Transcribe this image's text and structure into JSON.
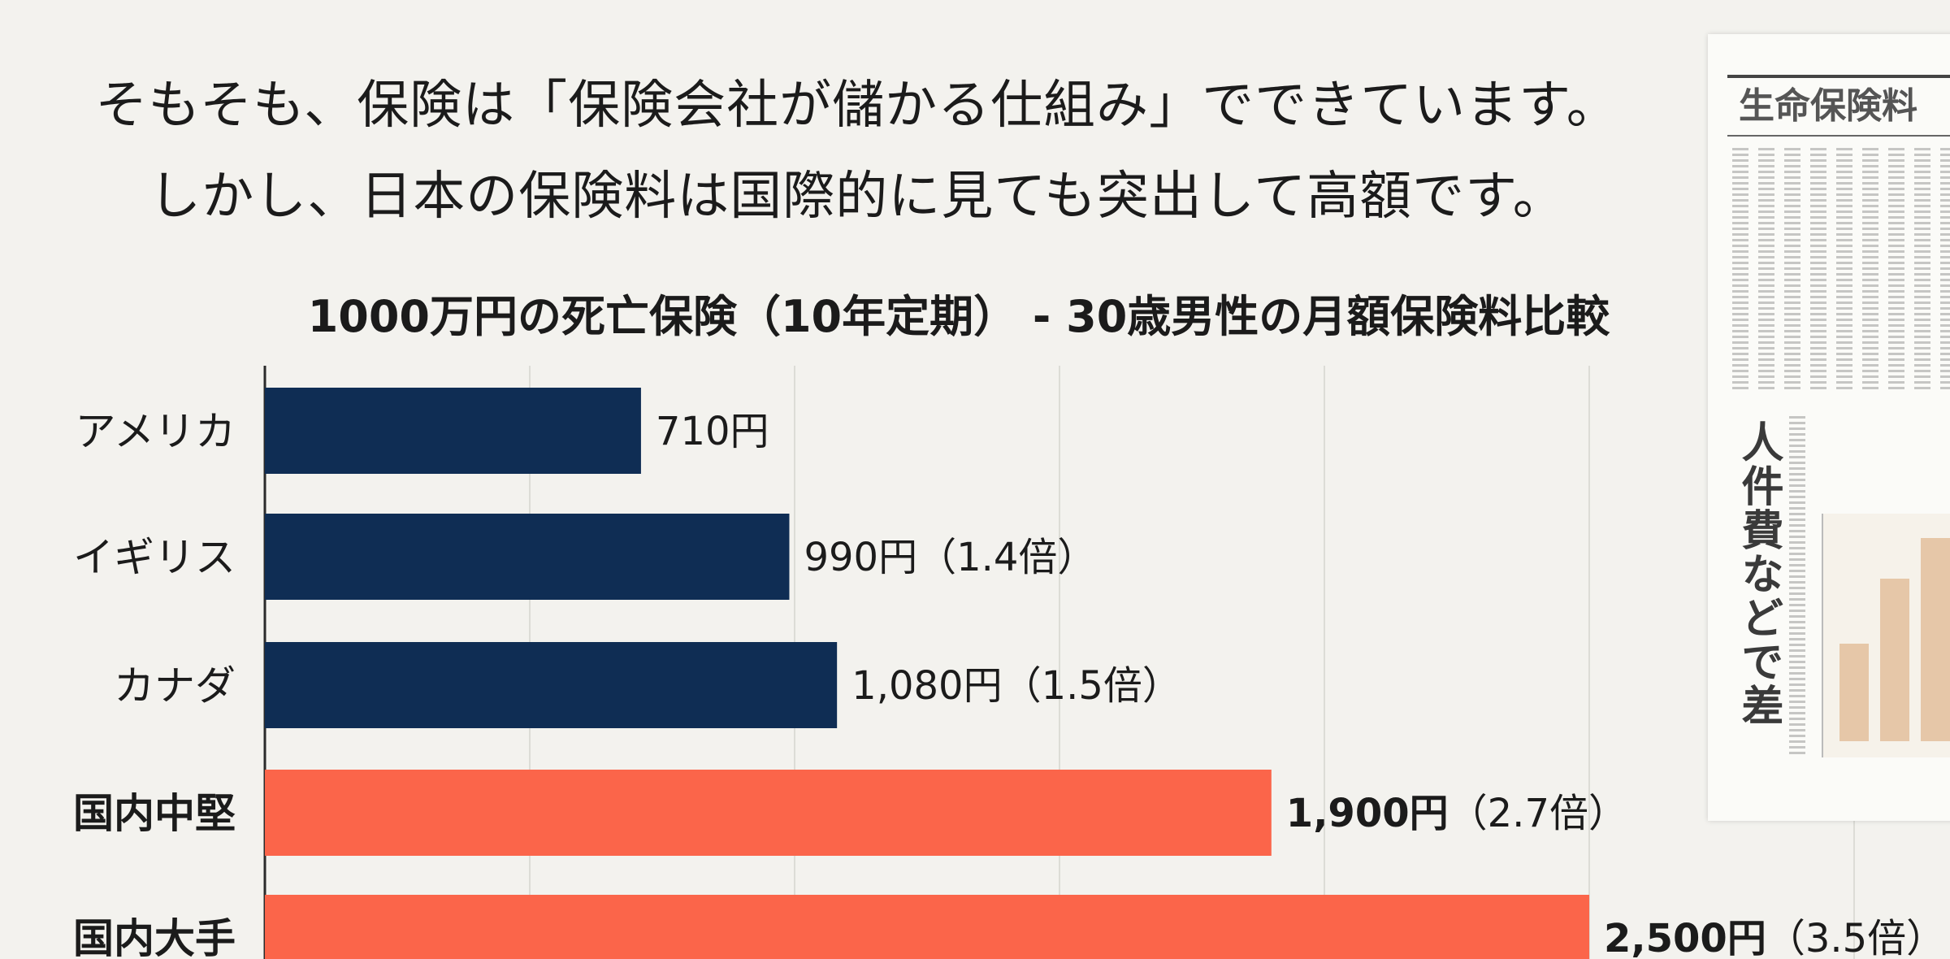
{
  "headline": {
    "line1": "そもそも、保険は「保険会社が儲かる仕組み」でできています。",
    "line2": "しかし、日本の保険料は国際的に見ても突出して高額です。"
  },
  "chart_data": {
    "type": "bar",
    "orientation": "horizontal",
    "title": "1000万円の死亡保険（10年定期） - 30歳男性の月額保険料比較",
    "xlabel": "",
    "ylabel": "",
    "xlim": [
      0,
      2500
    ],
    "grid": true,
    "categories": [
      "アメリカ",
      "イギリス",
      "カナダ",
      "国内中堅",
      "国内大手"
    ],
    "values": [
      710,
      990,
      1080,
      1900,
      2500
    ],
    "value_labels": [
      "710円",
      "990円",
      "1,080円",
      "1,900円",
      "2,500円"
    ],
    "ratio_labels": [
      "",
      "（1.4倍）",
      "（1.5倍）",
      "（2.7倍）",
      "（3.5倍）"
    ],
    "emphasized": [
      false,
      false,
      false,
      true,
      true
    ],
    "colors": {
      "foreign": "#0f2d54",
      "domestic": "#fb654a",
      "grid": "#dcdcd6",
      "axis": "#2a2a2a"
    }
  },
  "clipping": {
    "heading": "生命保険料",
    "vertical_headline": "人件費などで差",
    "icon": "newspaper-clipping-image"
  }
}
